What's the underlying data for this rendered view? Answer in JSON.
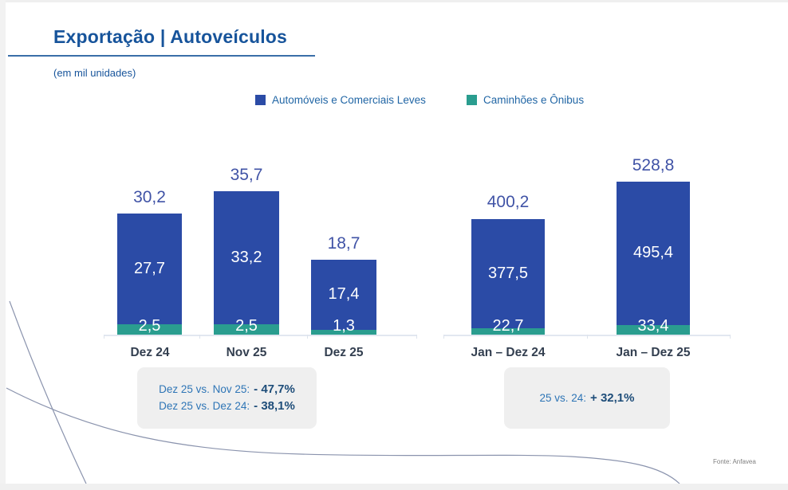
{
  "slide": {
    "title": "Exportação | Autoveículos",
    "subtitle": "(em mil unidades)",
    "source": "Fonte: Anfavea"
  },
  "legend": [
    {
      "label": "Automóveis e Comerciais Leves",
      "color": "#2b4ba6"
    },
    {
      "label": "Caminhões e Ônibus",
      "color": "#2a9d8f"
    }
  ],
  "chart_data": {
    "type": "bar",
    "subtype": "stacked",
    "title": "Exportação | Autoveículos",
    "unit": "mil unidades",
    "grid": false,
    "legend_position": "top",
    "groups": [
      {
        "name": "monthly",
        "categories": [
          "Dez 24",
          "Nov 25",
          "Dez 25"
        ],
        "series": [
          {
            "name": "Automóveis e Comerciais Leves",
            "values": [
              27.7,
              33.2,
              17.4
            ]
          },
          {
            "name": "Caminhões e Ônibus",
            "values": [
              2.5,
              2.5,
              1.3
            ]
          }
        ],
        "totals": [
          30.2,
          35.7,
          18.7
        ]
      },
      {
        "name": "ytd",
        "categories": [
          "Jan – Dez 24",
          "Jan – Dez 25"
        ],
        "series": [
          {
            "name": "Automóveis e Comerciais Leves",
            "values": [
              377.5,
              495.4
            ]
          },
          {
            "name": "Caminhões e Ônibus",
            "values": [
              22.7,
              33.4
            ]
          }
        ],
        "totals": [
          400.2,
          528.8
        ]
      }
    ]
  },
  "bars": [
    {
      "category": "Dez 24",
      "total": "30,2",
      "autos": "27,7",
      "trucks": "2,5"
    },
    {
      "category": "Nov 25",
      "total": "35,7",
      "autos": "33,2",
      "trucks": "2,5"
    },
    {
      "category": "Dez 25",
      "total": "18,7",
      "autos": "17,4",
      "trucks": "1,3"
    },
    {
      "category": "Jan – Dez 24",
      "total": "400,2",
      "autos": "377,5",
      "trucks": "22,7"
    },
    {
      "category": "Jan – Dez 25",
      "total": "528,8",
      "autos": "495,4",
      "trucks": "33,4"
    }
  ],
  "callouts": {
    "monthly": {
      "line1_label": "Dez 25 vs. Nov 25:",
      "line1_value": "- 47,7%",
      "line2_label": "Dez 25 vs. Dez 24:",
      "line2_value": "- 38,1%"
    },
    "yearly": {
      "label": "25 vs. 24:",
      "value": "+ 32,1%"
    }
  },
  "colors": {
    "title": "#17549b",
    "bar_autos": "#2b4ba6",
    "bar_trucks": "#2a9d8f",
    "total_label": "#4053a6",
    "axis_label": "#333f50",
    "callout_bg": "#efefef",
    "callout_text": "#2e75b6",
    "callout_value": "#1e4d79"
  }
}
